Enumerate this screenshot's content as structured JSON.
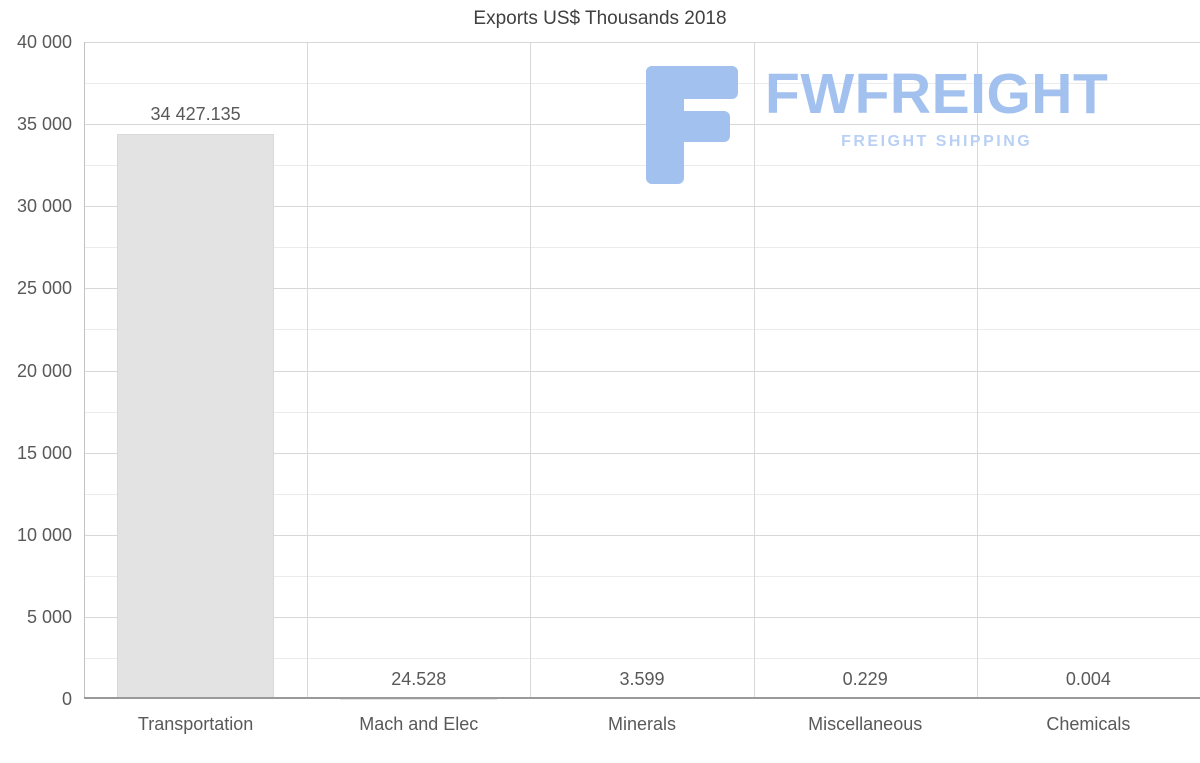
{
  "title": "Exports US$ Thousands 2018",
  "watermark": {
    "brand": "FWFREIGHT",
    "tagline": "FREIGHT SHIPPING"
  },
  "colors": {
    "bar": "#e3e3e3",
    "bar_border": "#d8d8d8",
    "grid_major": "#d8d8d8",
    "grid_minor": "#ebebeb",
    "axis": "#9a9a9a",
    "text": "#595959",
    "logo_blue": "#a3c1ee",
    "logo_light_blue": "#b9d0f4"
  },
  "chart_data": {
    "type": "bar",
    "title": "Exports US$ Thousands 2018",
    "categories": [
      "Transportation",
      "Mach and Elec",
      "Minerals",
      "Miscellaneous",
      "Chemicals"
    ],
    "values": [
      34427.135,
      24.528,
      3.599,
      0.229,
      0.004
    ],
    "value_labels": [
      "34 427.135",
      "24.528",
      "3.599",
      "0.229",
      "0.004"
    ],
    "xlabel": "",
    "ylabel": "",
    "ylim": [
      0,
      40000
    ],
    "ytick_step": 5000,
    "ytick_labels": [
      "0",
      "5 000",
      "10 000",
      "15 000",
      "20 000",
      "25 000",
      "30 000",
      "35 000",
      "40 000"
    ],
    "grid": true,
    "legend": "none"
  }
}
